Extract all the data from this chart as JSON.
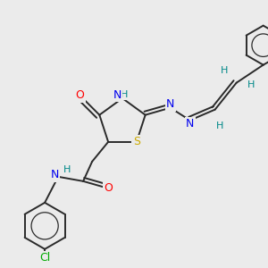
{
  "bg_color": "#ebebeb",
  "bond_color": "#2a2a2a",
  "atom_colors": {
    "O": "#ff0000",
    "N": "#0000ee",
    "S": "#ccaa00",
    "Cl": "#00aa00",
    "H": "#008888",
    "C": "#2a2a2a"
  },
  "figsize": [
    3.0,
    3.0
  ],
  "dpi": 100
}
